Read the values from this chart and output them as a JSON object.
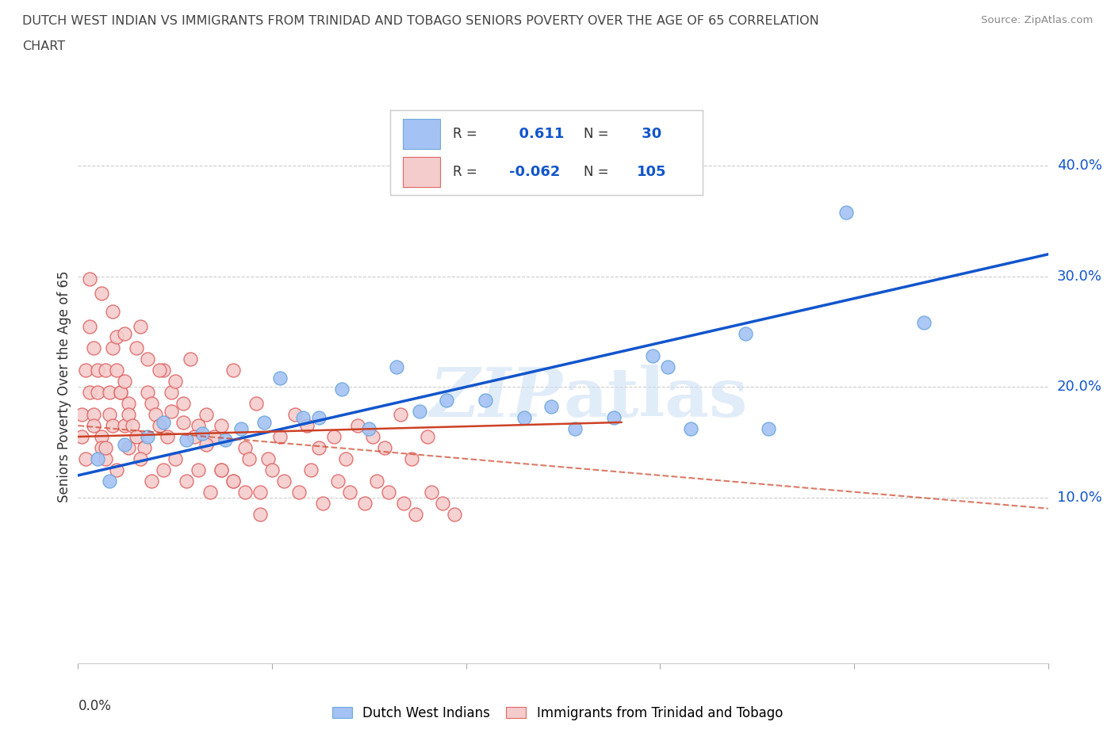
{
  "title_line1": "DUTCH WEST INDIAN VS IMMIGRANTS FROM TRINIDAD AND TOBAGO SENIORS POVERTY OVER THE AGE OF 65 CORRELATION",
  "title_line2": "CHART",
  "source": "Source: ZipAtlas.com",
  "watermark": "ZIPatlas",
  "ylabel": "Seniors Poverty Over the Age of 65",
  "yaxis_ticks": [
    "10.0%",
    "20.0%",
    "30.0%",
    "40.0%"
  ],
  "yaxis_tick_values": [
    0.1,
    0.2,
    0.3,
    0.4
  ],
  "xlim": [
    0.0,
    0.25
  ],
  "ylim": [
    -0.05,
    0.45
  ],
  "blue_R": 0.611,
  "blue_N": 30,
  "pink_R": -0.062,
  "pink_N": 105,
  "blue_color": "#a4c2f4",
  "blue_edge_color": "#6fa8dc",
  "pink_color": "#f4cccc",
  "pink_edge_color": "#e06666",
  "blue_line_color": "#1155cc",
  "pink_line_color": "#cc4125",
  "stat_color": "#1155cc",
  "legend_label_blue": "Dutch West Indians",
  "legend_label_pink": "Immigrants from Trinidad and Tobago",
  "blue_scatter_x": [
    0.005,
    0.008,
    0.012,
    0.018,
    0.022,
    0.028,
    0.032,
    0.038,
    0.042,
    0.048,
    0.052,
    0.058,
    0.062,
    0.068,
    0.075,
    0.082,
    0.088,
    0.095,
    0.105,
    0.115,
    0.122,
    0.128,
    0.138,
    0.148,
    0.152,
    0.158,
    0.172,
    0.178,
    0.198,
    0.218
  ],
  "blue_scatter_y": [
    0.135,
    0.115,
    0.148,
    0.155,
    0.168,
    0.152,
    0.158,
    0.152,
    0.162,
    0.168,
    0.208,
    0.172,
    0.172,
    0.198,
    0.162,
    0.218,
    0.178,
    0.188,
    0.188,
    0.172,
    0.182,
    0.162,
    0.172,
    0.228,
    0.218,
    0.162,
    0.248,
    0.162,
    0.358,
    0.258
  ],
  "pink_scatter_x": [
    0.001,
    0.001,
    0.002,
    0.002,
    0.003,
    0.003,
    0.004,
    0.004,
    0.005,
    0.005,
    0.006,
    0.006,
    0.007,
    0.007,
    0.008,
    0.008,
    0.009,
    0.009,
    0.01,
    0.01,
    0.011,
    0.011,
    0.012,
    0.012,
    0.013,
    0.013,
    0.014,
    0.015,
    0.016,
    0.017,
    0.018,
    0.019,
    0.02,
    0.021,
    0.022,
    0.023,
    0.024,
    0.025,
    0.027,
    0.029,
    0.031,
    0.033,
    0.035,
    0.037,
    0.04,
    0.043,
    0.046,
    0.049,
    0.052,
    0.056,
    0.059,
    0.062,
    0.066,
    0.069,
    0.072,
    0.076,
    0.079,
    0.083,
    0.086,
    0.09,
    0.004,
    0.007,
    0.01,
    0.013,
    0.016,
    0.019,
    0.022,
    0.025,
    0.028,
    0.031,
    0.034,
    0.037,
    0.04,
    0.044,
    0.047,
    0.05,
    0.053,
    0.057,
    0.06,
    0.063,
    0.067,
    0.07,
    0.074,
    0.077,
    0.08,
    0.084,
    0.087,
    0.091,
    0.094,
    0.097,
    0.003,
    0.006,
    0.009,
    0.012,
    0.015,
    0.018,
    0.021,
    0.024,
    0.027,
    0.03,
    0.033,
    0.037,
    0.04,
    0.043,
    0.047
  ],
  "pink_scatter_y": [
    0.175,
    0.155,
    0.215,
    0.135,
    0.195,
    0.255,
    0.235,
    0.175,
    0.195,
    0.215,
    0.155,
    0.145,
    0.215,
    0.135,
    0.175,
    0.195,
    0.235,
    0.165,
    0.215,
    0.245,
    0.195,
    0.195,
    0.205,
    0.165,
    0.185,
    0.175,
    0.165,
    0.155,
    0.255,
    0.145,
    0.195,
    0.185,
    0.175,
    0.165,
    0.215,
    0.155,
    0.195,
    0.205,
    0.185,
    0.225,
    0.165,
    0.175,
    0.155,
    0.165,
    0.215,
    0.145,
    0.185,
    0.135,
    0.155,
    0.175,
    0.165,
    0.145,
    0.155,
    0.135,
    0.165,
    0.155,
    0.145,
    0.175,
    0.135,
    0.155,
    0.165,
    0.145,
    0.125,
    0.145,
    0.135,
    0.115,
    0.125,
    0.135,
    0.115,
    0.125,
    0.105,
    0.125,
    0.115,
    0.135,
    0.105,
    0.125,
    0.115,
    0.105,
    0.125,
    0.095,
    0.115,
    0.105,
    0.095,
    0.115,
    0.105,
    0.095,
    0.085,
    0.105,
    0.095,
    0.085,
    0.298,
    0.285,
    0.268,
    0.248,
    0.235,
    0.225,
    0.215,
    0.178,
    0.168,
    0.155,
    0.148,
    0.125,
    0.115,
    0.105,
    0.085
  ]
}
